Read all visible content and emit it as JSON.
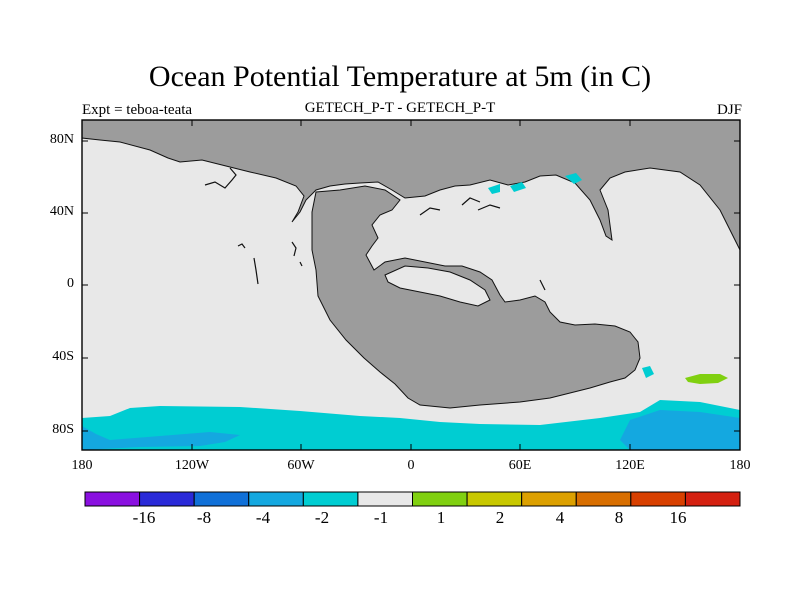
{
  "title": "Ocean Potential Temperature at 5m (in C)",
  "subtitle_left": "Expt = teboa-teata",
  "subtitle_center": "GETECH_P-T - GETECH_P-T",
  "subtitle_right": "DJF",
  "y_axis_labels": [
    "80N",
    "40N",
    "0",
    "40S",
    "80S"
  ],
  "x_axis_labels": [
    "180",
    "120W",
    "60W",
    "0",
    "60E",
    "120E",
    "180"
  ],
  "colorbar": {
    "colors": [
      "#8a10e0",
      "#2a2ad8",
      "#1070d8",
      "#14a8e0",
      "#00cdd2",
      "#e8e8e8",
      "#80d010",
      "#c8c800",
      "#dca000",
      "#d86e00",
      "#d84000",
      "#d42010"
    ],
    "labels": [
      "-16",
      "-8",
      "-4",
      "-2",
      "-1",
      "1",
      "2",
      "4",
      "8",
      "16"
    ]
  },
  "colors": {
    "land": "#9c9c9c",
    "ocean_neutral": "#e8e8e8",
    "cool_band": "#00cdd2",
    "cold_core": "#14a8e0",
    "warm_anomaly": "#80d010"
  }
}
